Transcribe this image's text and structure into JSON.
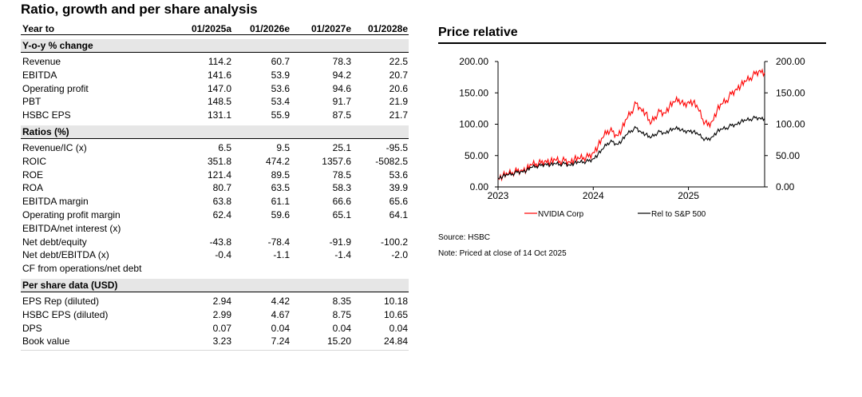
{
  "ratio_table": {
    "title": "Ratio, growth and per share analysis",
    "header": {
      "label": "Year to",
      "cols": [
        "01/2025a",
        "01/2026e",
        "01/2027e",
        "01/2028e"
      ]
    },
    "sections": [
      {
        "title": "Y-o-y % change",
        "rows": [
          {
            "label": "Revenue",
            "values": [
              "114.2",
              "60.7",
              "78.3",
              "22.5"
            ]
          },
          {
            "label": "EBITDA",
            "values": [
              "141.6",
              "53.9",
              "94.2",
              "20.7"
            ]
          },
          {
            "label": "Operating profit",
            "values": [
              "147.0",
              "53.6",
              "94.6",
              "20.6"
            ]
          },
          {
            "label": "PBT",
            "values": [
              "148.5",
              "53.4",
              "91.7",
              "21.9"
            ]
          },
          {
            "label": "HSBC EPS",
            "values": [
              "131.1",
              "55.9",
              "87.5",
              "21.7"
            ]
          }
        ]
      },
      {
        "title": "Ratios (%)",
        "rows": [
          {
            "label": "Revenue/IC (x)",
            "values": [
              "6.5",
              "9.5",
              "25.1",
              "-95.5"
            ]
          },
          {
            "label": "ROIC",
            "values": [
              "351.8",
              "474.2",
              "1357.6",
              "-5082.5"
            ]
          },
          {
            "label": "ROE",
            "values": [
              "121.4",
              "89.5",
              "78.5",
              "53.6"
            ]
          },
          {
            "label": "ROA",
            "values": [
              "80.7",
              "63.5",
              "58.3",
              "39.9"
            ]
          },
          {
            "label": "EBITDA margin",
            "values": [
              "63.8",
              "61.1",
              "66.6",
              "65.6"
            ]
          },
          {
            "label": "Operating profit margin",
            "values": [
              "62.4",
              "59.6",
              "65.1",
              "64.1"
            ]
          },
          {
            "label": "EBITDA/net interest (x)",
            "values": [
              "",
              "",
              "",
              ""
            ]
          },
          {
            "label": "Net debt/equity",
            "values": [
              "-43.8",
              "-78.4",
              "-91.9",
              "-100.2"
            ]
          },
          {
            "label": "Net debt/EBITDA (x)",
            "values": [
              "-0.4",
              "-1.1",
              "-1.4",
              "-2.0"
            ]
          },
          {
            "label": "CF from operations/net debt",
            "values": [
              "",
              "",
              "",
              ""
            ]
          }
        ]
      },
      {
        "title": "Per share data  (USD)",
        "rows": [
          {
            "label": "EPS Rep (diluted)",
            "values": [
              "2.94",
              "4.42",
              "8.35",
              "10.18"
            ]
          },
          {
            "label": "HSBC EPS (diluted)",
            "values": [
              "2.99",
              "4.67",
              "8.75",
              "10.65"
            ]
          },
          {
            "label": "DPS",
            "values": [
              "0.07",
              "0.04",
              "0.04",
              "0.04"
            ]
          },
          {
            "label": "Book value",
            "values": [
              "3.23",
              "7.24",
              "15.20",
              "24.84"
            ]
          }
        ]
      }
    ]
  },
  "price_relative": {
    "title": "Price relative",
    "source": "Source: HSBC",
    "note": "Note:  Priced at close of   14 Oct 2025",
    "chart_data": {
      "type": "line",
      "title": "",
      "xlabel": "",
      "ylabel": "",
      "xlim": [
        2023.0,
        2025.8
      ],
      "ylim": [
        0,
        200
      ],
      "x_ticks": [
        "2023",
        "2024",
        "2025"
      ],
      "y_ticks_left": [
        "0.00",
        "50.00",
        "100.00",
        "150.00",
        "200.00"
      ],
      "y_ticks_right": [
        "0.00",
        "50.00",
        "100.00",
        "150.00",
        "200.00"
      ],
      "grid": false,
      "legend_position": "bottom",
      "series": [
        {
          "name": "NVIDIA Corp",
          "color": "#ff0000",
          "x": [
            2023.0,
            2023.05,
            2023.1,
            2023.15,
            2023.2,
            2023.25,
            2023.3,
            2023.35,
            2023.4,
            2023.45,
            2023.5,
            2023.55,
            2023.6,
            2023.65,
            2023.7,
            2023.75,
            2023.8,
            2023.85,
            2023.9,
            2023.95,
            2024.0,
            2024.05,
            2024.1,
            2024.15,
            2024.2,
            2024.25,
            2024.3,
            2024.35,
            2024.4,
            2024.45,
            2024.5,
            2024.55,
            2024.6,
            2024.65,
            2024.7,
            2024.75,
            2024.8,
            2024.85,
            2024.9,
            2024.95,
            2025.0,
            2025.05,
            2025.1,
            2025.15,
            2025.2,
            2025.25,
            2025.3,
            2025.35,
            2025.4,
            2025.45,
            2025.5,
            2025.55,
            2025.6,
            2025.65,
            2025.7,
            2025.75,
            2025.8
          ],
          "values": [
            14,
            18,
            20,
            23,
            25,
            27,
            28,
            35,
            37,
            38,
            42,
            40,
            43,
            41,
            42,
            40,
            44,
            45,
            47,
            48,
            55,
            65,
            78,
            90,
            88,
            82,
            92,
            108,
            120,
            133,
            125,
            118,
            100,
            112,
            120,
            118,
            128,
            135,
            140,
            130,
            136,
            135,
            125,
            108,
            98,
            105,
            122,
            132,
            138,
            148,
            156,
            162,
            168,
            174,
            180,
            186,
            182
          ]
        },
        {
          "name": "Rel to S&P 500",
          "color": "#000000",
          "x": [
            2023.0,
            2023.05,
            2023.1,
            2023.15,
            2023.2,
            2023.25,
            2023.3,
            2023.35,
            2023.4,
            2023.45,
            2023.5,
            2023.55,
            2023.6,
            2023.65,
            2023.7,
            2023.75,
            2023.8,
            2023.85,
            2023.9,
            2023.95,
            2024.0,
            2024.05,
            2024.1,
            2024.15,
            2024.2,
            2024.25,
            2024.3,
            2024.35,
            2024.4,
            2024.45,
            2024.5,
            2024.55,
            2024.6,
            2024.65,
            2024.7,
            2024.75,
            2024.8,
            2024.85,
            2024.9,
            2024.95,
            2025.0,
            2025.05,
            2025.1,
            2025.15,
            2025.2,
            2025.25,
            2025.3,
            2025.35,
            2025.4,
            2025.45,
            2025.5,
            2025.55,
            2025.6,
            2025.65,
            2025.7,
            2025.75,
            2025.8
          ],
          "values": [
            14,
            17,
            19,
            21,
            23,
            25,
            26,
            31,
            33,
            34,
            37,
            35,
            37,
            36,
            37,
            35,
            38,
            39,
            40,
            41,
            45,
            52,
            60,
            70,
            72,
            68,
            74,
            83,
            90,
            94,
            88,
            84,
            78,
            84,
            88,
            86,
            90,
            92,
            94,
            88,
            90,
            88,
            84,
            78,
            75,
            80,
            88,
            92,
            94,
            98,
            100,
            104,
            106,
            108,
            110,
            110,
            109
          ]
        }
      ]
    }
  }
}
